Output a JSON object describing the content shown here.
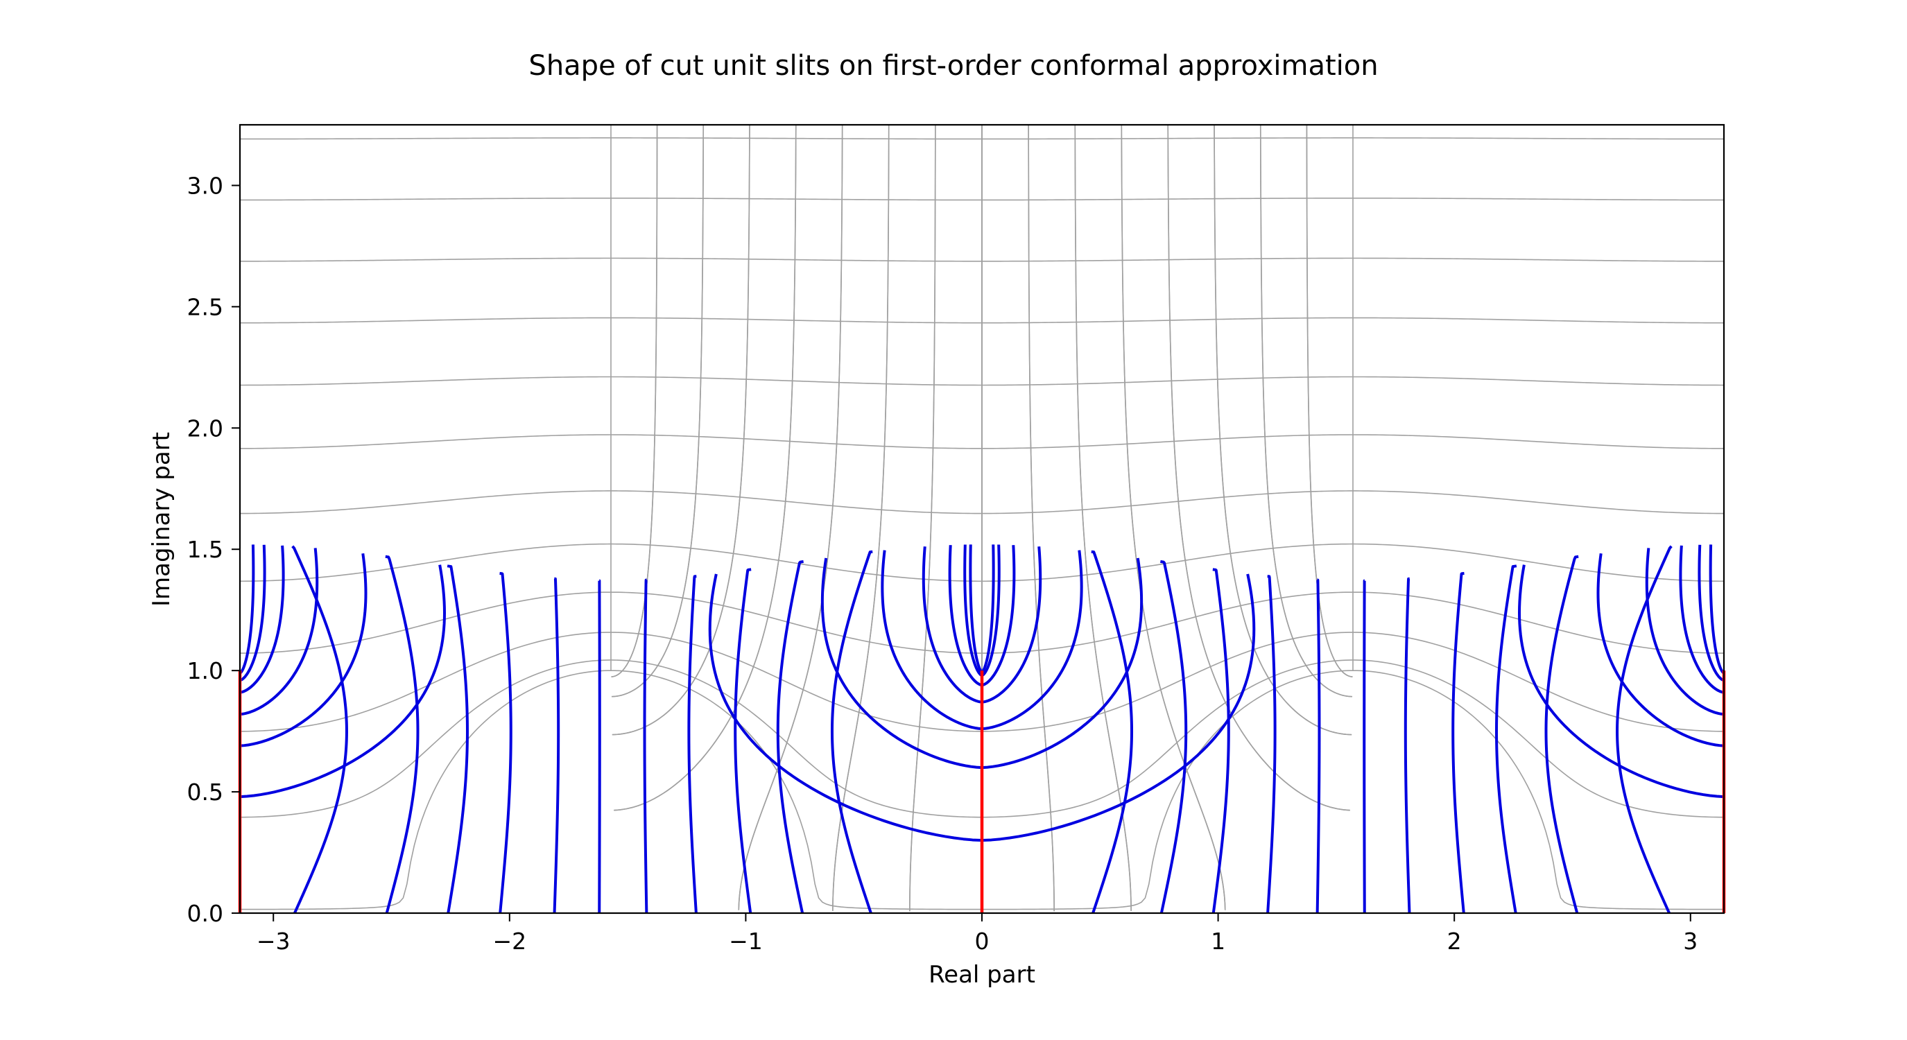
{
  "chart_data": {
    "type": "line",
    "title": "Shape of cut unit slits on first-order conformal approximation",
    "xlabel": "Real part",
    "ylabel": "Imaginary part",
    "xlim": [
      -3.14159,
      3.14159
    ],
    "ylim": [
      0,
      3.25
    ],
    "xticks": [
      -3,
      -2,
      -1,
      0,
      1,
      2,
      3
    ],
    "xtick_labels": [
      "−3",
      "−2",
      "−1",
      "0",
      "1",
      "2",
      "3"
    ],
    "yticks": [
      0,
      0.5,
      1,
      1.5,
      2,
      2.5,
      3
    ],
    "ytick_labels": [
      "0.0",
      "0.5",
      "1.0",
      "1.5",
      "2.0",
      "2.5",
      "3.0"
    ],
    "grid": false,
    "legend": "none",
    "colors": {
      "slits": "#ff0000",
      "field_lines": "#0000e0",
      "coordinate_mesh": "#a0a0a0",
      "axes": "#000000"
    },
    "slits": [
      {
        "x": -3.14159,
        "y": [
          0,
          1
        ]
      },
      {
        "x": 0,
        "y": [
          0,
          1
        ]
      },
      {
        "x": 3.14159,
        "y": [
          0,
          1
        ]
      }
    ],
    "field_line_families": [
      {
        "center": 0,
        "apex_heights": [
          0.3,
          0.6,
          0.76,
          0.87,
          0.94,
          0.98,
          0.995
        ]
      },
      {
        "center": -3.14159,
        "apex_heights": [
          0.48,
          0.69,
          0.82,
          0.91,
          0.96,
          0.99
        ]
      },
      {
        "center": 3.14159,
        "apex_heights": [
          0.48,
          0.69,
          0.82,
          0.91,
          0.96,
          0.99
        ]
      }
    ],
    "vertical_field_lines_base_x": [
      -2.91,
      -2.52,
      -2.26,
      -2.04,
      -1.81,
      -1.62,
      -1.42,
      -1.21,
      -0.98,
      -0.76,
      -0.47,
      0.47,
      0.76,
      0.98,
      1.21,
      1.42,
      1.62,
      1.81,
      2.04,
      2.26,
      2.52,
      2.91
    ],
    "top_curve": {
      "y_at_slits": 1.52,
      "y_at_midpoints": 1.37
    }
  }
}
